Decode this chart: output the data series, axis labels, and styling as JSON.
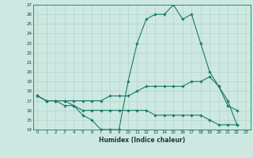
{
  "xlabel": "Humidex (Indice chaleur)",
  "bg_color": "#cce8e0",
  "line_color": "#1a7a6e",
  "grid_color": "#aacfc8",
  "xlim": [
    -0.5,
    23.5
  ],
  "ylim": [
    14,
    27
  ],
  "yticks": [
    14,
    15,
    16,
    17,
    18,
    19,
    20,
    21,
    22,
    23,
    24,
    25,
    26,
    27
  ],
  "xticks": [
    0,
    1,
    2,
    3,
    4,
    5,
    6,
    7,
    8,
    9,
    10,
    11,
    12,
    13,
    14,
    15,
    16,
    17,
    18,
    19,
    20,
    21,
    22,
    23
  ],
  "series": {
    "max": [
      [
        0,
        17.5
      ],
      [
        1,
        17.0
      ],
      [
        2,
        17.0
      ],
      [
        3,
        17.0
      ],
      [
        4,
        16.5
      ],
      [
        5,
        15.5
      ],
      [
        6,
        15.0
      ],
      [
        7,
        14.0
      ],
      [
        8,
        14.0
      ],
      [
        9,
        14.0
      ],
      [
        10,
        19.0
      ],
      [
        11,
        23.0
      ],
      [
        12,
        25.5
      ],
      [
        13,
        26.0
      ],
      [
        14,
        26.0
      ],
      [
        15,
        27.0
      ],
      [
        16,
        25.5
      ],
      [
        17,
        26.0
      ],
      [
        18,
        23.0
      ],
      [
        19,
        20.0
      ],
      [
        20,
        18.5
      ],
      [
        21,
        16.5
      ],
      [
        22,
        16.0
      ]
    ],
    "avg": [
      [
        0,
        17.5
      ],
      [
        1,
        17.0
      ],
      [
        2,
        17.0
      ],
      [
        3,
        17.0
      ],
      [
        4,
        17.0
      ],
      [
        5,
        17.0
      ],
      [
        6,
        17.0
      ],
      [
        7,
        17.0
      ],
      [
        8,
        17.5
      ],
      [
        9,
        17.5
      ],
      [
        10,
        17.5
      ],
      [
        11,
        18.0
      ],
      [
        12,
        18.5
      ],
      [
        13,
        18.5
      ],
      [
        14,
        18.5
      ],
      [
        15,
        18.5
      ],
      [
        16,
        18.5
      ],
      [
        17,
        19.0
      ],
      [
        18,
        19.0
      ],
      [
        19,
        19.5
      ],
      [
        20,
        18.5
      ],
      [
        21,
        17.0
      ],
      [
        22,
        14.5
      ]
    ],
    "min": [
      [
        0,
        17.5
      ],
      [
        1,
        17.0
      ],
      [
        2,
        17.0
      ],
      [
        3,
        16.5
      ],
      [
        4,
        16.5
      ],
      [
        5,
        16.0
      ],
      [
        6,
        16.0
      ],
      [
        7,
        16.0
      ],
      [
        8,
        16.0
      ],
      [
        9,
        16.0
      ],
      [
        10,
        16.0
      ],
      [
        11,
        16.0
      ],
      [
        12,
        16.0
      ],
      [
        13,
        15.5
      ],
      [
        14,
        15.5
      ],
      [
        15,
        15.5
      ],
      [
        16,
        15.5
      ],
      [
        17,
        15.5
      ],
      [
        18,
        15.5
      ],
      [
        19,
        15.0
      ],
      [
        20,
        14.5
      ],
      [
        21,
        14.5
      ],
      [
        22,
        14.5
      ]
    ]
  }
}
